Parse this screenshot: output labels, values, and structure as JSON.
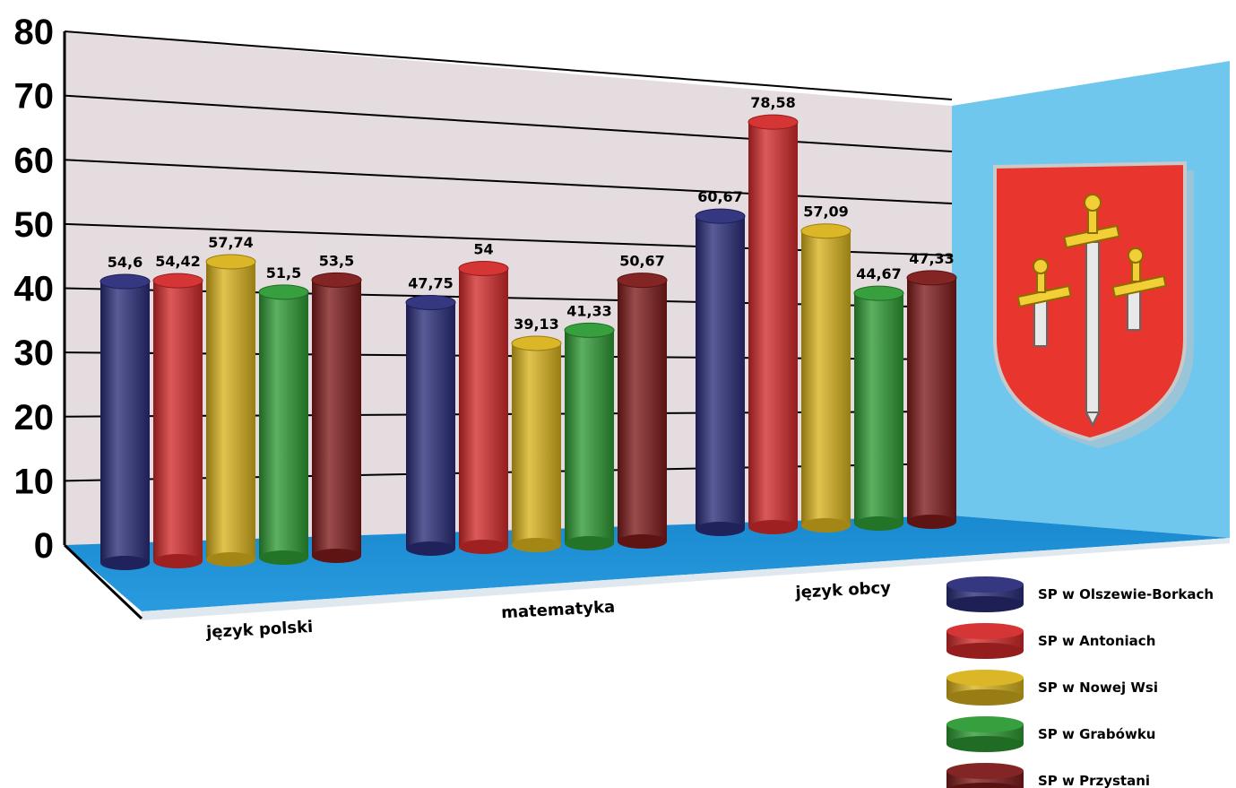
{
  "chart_data": {
    "type": "bar",
    "ylim": [
      0,
      80
    ],
    "yticks": [
      "0",
      "10",
      "20",
      "30",
      "40",
      "50",
      "60",
      "70",
      "80"
    ],
    "grid": true,
    "legend_position": "bottom-right",
    "categories": [
      "język polski",
      "matematyka",
      "język obcy"
    ],
    "series": [
      {
        "name": "SP w Olszewie-Borkach",
        "color": "#2a2d7a",
        "values": [
          54.6,
          47.75,
          60.67
        ],
        "labels": [
          "54,6",
          "47,75",
          "60,67"
        ]
      },
      {
        "name": "SP w Antoniach",
        "color": "#d42a2a",
        "values": [
          54.42,
          54,
          78.58
        ],
        "labels": [
          "54,42",
          "54",
          "78,58"
        ]
      },
      {
        "name": "SP w Nowej Wsi",
        "color": "#d9b21c",
        "values": [
          57.74,
          39.13,
          57.09
        ],
        "labels": [
          "57,74",
          "39,13",
          "57,09"
        ]
      },
      {
        "name": "SP w Grabówku",
        "color": "#2e9a34",
        "values": [
          51.5,
          41.33,
          44.67
        ],
        "labels": [
          "51,5",
          "41,33",
          "44,67"
        ]
      },
      {
        "name": "SP w Przystani",
        "color": "#7e1a1a",
        "values": [
          53.5,
          50.67,
          47.33
        ],
        "labels": [
          "53,5",
          "50,67",
          "47,33"
        ]
      }
    ],
    "emblem": "coat-of-arms-three-swords-icon"
  }
}
